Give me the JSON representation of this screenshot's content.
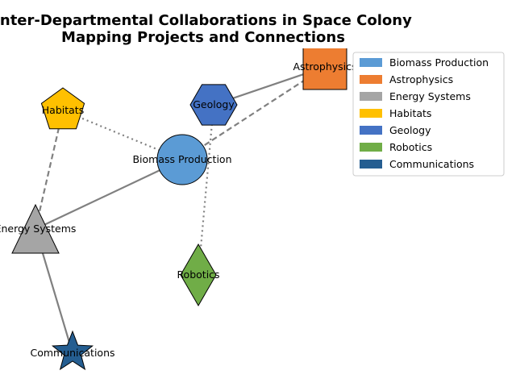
{
  "title": {
    "line1": "Inter-Departmental Collaborations in Space Colony",
    "line2": "Mapping Projects and Connections"
  },
  "nodes": [
    {
      "id": "biomass",
      "label": "Biomass Production",
      "shape": "circle",
      "color": "#5B9BD5"
    },
    {
      "id": "astro",
      "label": "Astrophysics",
      "shape": "square",
      "color": "#ED7D31"
    },
    {
      "id": "energy",
      "label": "Energy Systems",
      "shape": "triangle",
      "color": "#A5A5A5"
    },
    {
      "id": "habitats",
      "label": "Habitats",
      "shape": "pentagon",
      "color": "#FFC000"
    },
    {
      "id": "geology",
      "label": "Geology",
      "shape": "hexagon",
      "color": "#4472C4"
    },
    {
      "id": "robotics",
      "label": "Robotics",
      "shape": "diamond",
      "color": "#70AD47"
    },
    {
      "id": "comms",
      "label": "Communications",
      "shape": "star",
      "color": "#255E91"
    }
  ],
  "edges": [
    {
      "from": "biomass",
      "to": "astro",
      "style": "dashed"
    },
    {
      "from": "biomass",
      "to": "energy",
      "style": "solid"
    },
    {
      "from": "biomass",
      "to": "habitats",
      "style": "dotted"
    },
    {
      "from": "geology",
      "to": "astro",
      "style": "solid"
    },
    {
      "from": "geology",
      "to": "robotics",
      "style": "dotted"
    },
    {
      "from": "habitats",
      "to": "energy",
      "style": "dashed"
    },
    {
      "from": "energy",
      "to": "comms",
      "style": "solid"
    }
  ],
  "edge_color": "#808080",
  "legend": [
    {
      "label": "Biomass Production",
      "color": "#5B9BD5"
    },
    {
      "label": "Astrophysics",
      "color": "#ED7D31"
    },
    {
      "label": "Energy Systems",
      "color": "#A5A5A5"
    },
    {
      "label": "Habitats",
      "color": "#FFC000"
    },
    {
      "label": "Geology",
      "color": "#4472C4"
    },
    {
      "label": "Robotics",
      "color": "#70AD47"
    },
    {
      "label": "Communications",
      "color": "#255E91"
    }
  ]
}
